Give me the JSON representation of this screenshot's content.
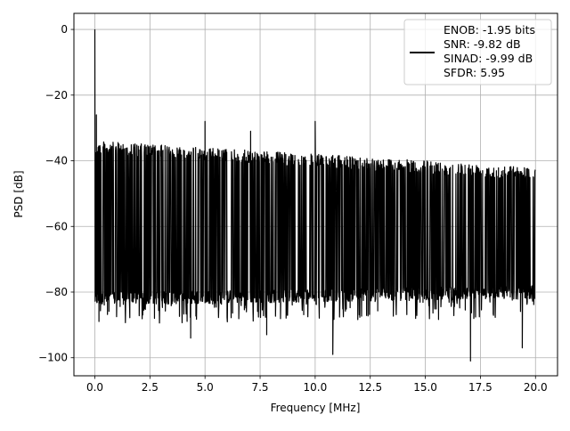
{
  "chart_data": {
    "type": "line",
    "xlabel": "Frequency [MHz]",
    "ylabel": "PSD [dB]",
    "xlim": [
      -0.95,
      21.0
    ],
    "ylim": [
      -105.5,
      4.9
    ],
    "grid": true,
    "legend_position": "top-right",
    "x_ticks": [
      0.0,
      2.5,
      5.0,
      7.5,
      10.0,
      12.5,
      15.0,
      17.5,
      20.0
    ],
    "x_tick_labels": [
      "0.0",
      "2.5",
      "5.0",
      "7.5",
      "10.0",
      "12.5",
      "15.0",
      "17.5",
      "20.0"
    ],
    "y_ticks": [
      0,
      -20,
      -40,
      -60,
      -80,
      -100
    ],
    "y_tick_labels": [
      "0",
      "−20",
      "−40",
      "−60",
      "−80",
      "−100"
    ],
    "legend_lines": [
      "ENOB: -1.95 bits",
      "SNR: -9.82 dB",
      "SINAD: -9.99 dB",
      "SFDR: 5.95"
    ],
    "series": [
      {
        "color": "#000000",
        "x_range": [
          0.0,
          20.0
        ],
        "dc_peak_db": 0.0,
        "noise_ceiling_db": {
          "x": [
            0,
            20
          ],
          "y": [
            -34,
            -42
          ]
        },
        "noise_floor_db": {
          "x": [
            0,
            20
          ],
          "y": [
            -82,
            -80
          ]
        },
        "spurs": [
          {
            "x": 0.07,
            "y": -26
          },
          {
            "x": 5.0,
            "y": -28
          },
          {
            "x": 7.07,
            "y": -31
          },
          {
            "x": 10.0,
            "y": -28
          }
        ],
        "deep_dips": [
          {
            "x": 4.35,
            "y": -94
          },
          {
            "x": 7.8,
            "y": -93
          },
          {
            "x": 10.8,
            "y": -99
          },
          {
            "x": 17.05,
            "y": -101
          },
          {
            "x": 19.4,
            "y": -97
          }
        ]
      }
    ]
  }
}
